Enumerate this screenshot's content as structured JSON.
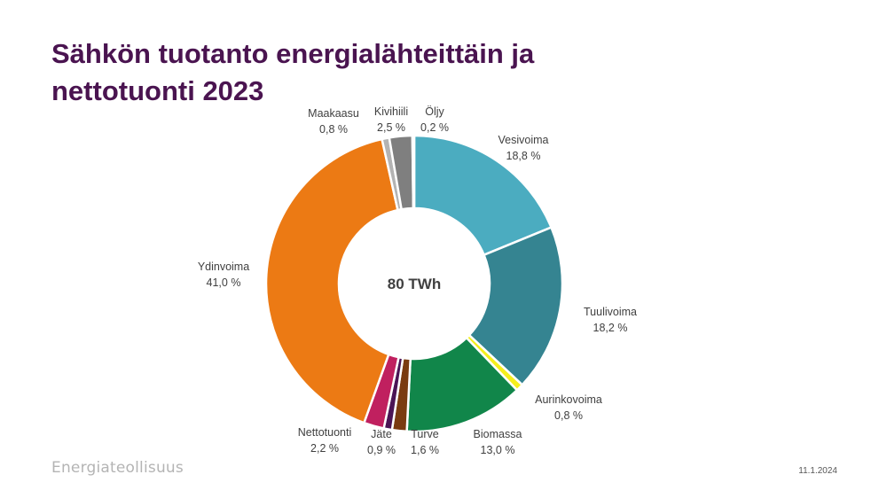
{
  "slide": {
    "title": "Sähkön tuotanto energialähteittäin ja nettotuonti 2023",
    "brand": "Energiateollisuus",
    "date": "11.1.2024"
  },
  "colors": {
    "title": "#4a1450",
    "Vesivoima": "#4bacc0",
    "Tuulivoima": "#358491",
    "Aurinkovoima": "#f5ef1c",
    "Biomassa": "#11864a",
    "Turve": "#7a3b10",
    "Jäte": "#4b1455",
    "Nettotuonti": "#c0205f",
    "Ydinvoima": "#ec7a14",
    "Maakaasu": "#b3b3b3",
    "Kivihiili": "#7f7f7f",
    "Öljy": "#4a4a4a"
  },
  "chart_data": {
    "type": "pie",
    "variant": "donut",
    "center_label": "80 TWh",
    "title": "Sähkön tuotanto energialähteittäin ja nettotuonti 2023",
    "slices": [
      {
        "name": "Vesivoima",
        "value": 18.8,
        "label": "18,8 %"
      },
      {
        "name": "Tuulivoima",
        "value": 18.2,
        "label": "18,2 %"
      },
      {
        "name": "Aurinkovoima",
        "value": 0.8,
        "label": "0,8 %"
      },
      {
        "name": "Biomassa",
        "value": 13.0,
        "label": "13,0 %"
      },
      {
        "name": "Turve",
        "value": 1.6,
        "label": "1,6 %"
      },
      {
        "name": "Jäte",
        "value": 0.9,
        "label": "0,9 %"
      },
      {
        "name": "Nettotuonti",
        "value": 2.2,
        "label": "2,2 %"
      },
      {
        "name": "Ydinvoima",
        "value": 41.0,
        "label": "41,0 %"
      },
      {
        "name": "Maakaasu",
        "value": 0.8,
        "label": "0,8 %"
      },
      {
        "name": "Kivihiili",
        "value": 2.5,
        "label": "2,5 %"
      },
      {
        "name": "Öljy",
        "value": 0.2,
        "label": "0,2 %"
      }
    ]
  }
}
